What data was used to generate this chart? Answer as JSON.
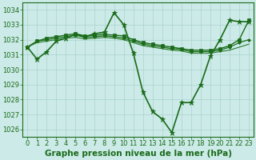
{
  "title": "Graphe pression niveau de la mer (hPa)",
  "x_labels": [
    "0",
    "1",
    "2",
    "3",
    "4",
    "5",
    "6",
    "7",
    "8",
    "9",
    "10",
    "11",
    "12",
    "13",
    "14",
    "15",
    "16",
    "17",
    "18",
    "19",
    "20",
    "21",
    "22",
    "23"
  ],
  "ylim": [
    1025.5,
    1034.5
  ],
  "yticks": [
    1026,
    1027,
    1028,
    1029,
    1030,
    1031,
    1032,
    1033,
    1034
  ],
  "lines": [
    {
      "x": [
        0,
        1,
        2,
        3,
        4,
        5,
        6,
        7,
        8,
        9,
        10,
        11,
        12,
        13,
        14,
        15,
        16,
        17,
        18,
        19,
        20,
        21,
        22,
        23
      ],
      "y": [
        1031.5,
        1030.7,
        1031.2,
        1031.9,
        1032.1,
        1032.35,
        1032.2,
        1032.4,
        1032.5,
        1033.8,
        1033.0,
        1031.1,
        1028.5,
        1027.2,
        1026.7,
        1025.8,
        1027.8,
        1027.8,
        1029.0,
        1030.9,
        1032.0,
        1033.3,
        1033.2,
        1033.2
      ],
      "color": "#1a6b1a",
      "marker": "*",
      "linewidth": 1.2,
      "markersize": 4.5
    },
    {
      "x": [
        0,
        1,
        2,
        3,
        4,
        5,
        6,
        7,
        8,
        9,
        10,
        11,
        12,
        13,
        14,
        15,
        16,
        17,
        18,
        19,
        20,
        21,
        22,
        23
      ],
      "y": [
        1031.5,
        1031.9,
        1032.1,
        1032.2,
        1032.3,
        1032.4,
        1032.25,
        1032.3,
        1032.35,
        1032.3,
        1032.25,
        1032.0,
        1031.8,
        1031.7,
        1031.6,
        1031.5,
        1031.4,
        1031.3,
        1031.3,
        1031.3,
        1031.4,
        1031.6,
        1032.0,
        1033.3
      ],
      "color": "#1a6b1a",
      "marker": "s",
      "linewidth": 1.0,
      "markersize": 2.5
    },
    {
      "x": [
        0,
        1,
        2,
        3,
        4,
        5,
        6,
        7,
        8,
        9,
        10,
        11,
        12,
        13,
        14,
        15,
        16,
        17,
        18,
        19,
        20,
        21,
        22,
        23
      ],
      "y": [
        1031.5,
        1031.9,
        1032.0,
        1032.1,
        1032.2,
        1032.3,
        1032.15,
        1032.2,
        1032.25,
        1032.2,
        1032.1,
        1031.9,
        1031.7,
        1031.6,
        1031.5,
        1031.4,
        1031.35,
        1031.2,
        1031.2,
        1031.2,
        1031.3,
        1031.5,
        1031.8,
        1032.0
      ],
      "color": "#1a6b1a",
      "marker": "D",
      "linewidth": 0.9,
      "markersize": 2.0
    },
    {
      "x": [
        0,
        1,
        2,
        3,
        4,
        5,
        6,
        7,
        8,
        9,
        10,
        11,
        12,
        13,
        14,
        15,
        16,
        17,
        18,
        19,
        20,
        21,
        22,
        23
      ],
      "y": [
        1031.5,
        1031.8,
        1031.9,
        1032.0,
        1032.1,
        1032.15,
        1032.05,
        1032.1,
        1032.15,
        1032.1,
        1032.0,
        1031.8,
        1031.6,
        1031.5,
        1031.4,
        1031.3,
        1031.25,
        1031.1,
        1031.1,
        1031.1,
        1031.2,
        1031.3,
        1031.5,
        1031.7
      ],
      "color": "#2a7a2a",
      "marker": null,
      "linewidth": 0.8,
      "markersize": 0
    }
  ],
  "background_color": "#cceae7",
  "grid_color": "#aad4d0",
  "line_color": "#1a6b1a",
  "tick_color": "#1a6b1a",
  "title_color": "#1a6b1a",
  "title_fontsize": 7.0,
  "tick_fontsize": 6.0,
  "label_fontsize": 7.5
}
